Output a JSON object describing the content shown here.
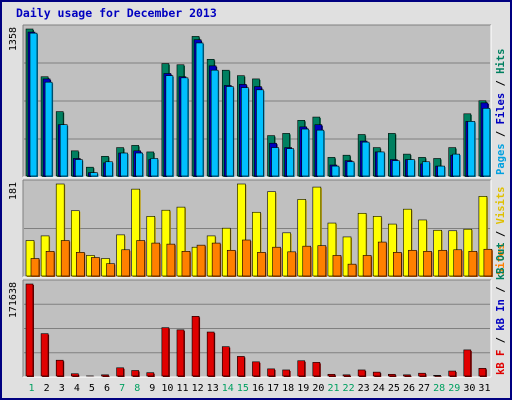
{
  "title": "Daily usage for December 2013",
  "legends": {
    "top": [
      {
        "text": "Pages",
        "color": "#00a0e0"
      },
      {
        "text": " / ",
        "color": "#000000"
      },
      {
        "text": "Files",
        "color": "#0000c0"
      },
      {
        "text": " / ",
        "color": "#000000"
      },
      {
        "text": "Hits",
        "color": "#008060"
      }
    ],
    "middle": [
      {
        "text": "Sites",
        "color": "#ff8000"
      },
      {
        "text": " / ",
        "color": "#000000"
      },
      {
        "text": "Visits",
        "color": "#e0c000"
      }
    ],
    "bottom": [
      {
        "text": "kB F",
        "color": "#e00000"
      },
      {
        "text": " / ",
        "color": "#000000"
      },
      {
        "text": "kB In",
        "color": "#0000c0"
      },
      {
        "text": " / ",
        "color": "#000000"
      },
      {
        "text": "kB Out",
        "color": "#008060"
      }
    ]
  },
  "chart_data": [
    {
      "type": "bar",
      "panel": "hits-files-pages",
      "ylabel_max": "1358",
      "ylim": [
        0,
        1358
      ],
      "categories": [
        "1",
        "2",
        "3",
        "4",
        "5",
        "6",
        "7",
        "8",
        "9",
        "10",
        "11",
        "12",
        "13",
        "14",
        "15",
        "16",
        "17",
        "18",
        "19",
        "20",
        "21",
        "22",
        "23",
        "24",
        "25",
        "26",
        "27",
        "28",
        "29",
        "30",
        "31"
      ],
      "weekend_days": [
        "1",
        "7",
        "8",
        "14",
        "15",
        "21",
        "22",
        "28",
        "29"
      ],
      "series": [
        {
          "name": "Hits",
          "color": "#008060",
          "values": [
            1358,
            920,
            600,
            240,
            90,
            190,
            270,
            290,
            230,
            1040,
            1030,
            1290,
            1080,
            980,
            930,
            900,
            380,
            400,
            520,
            550,
            180,
            200,
            390,
            270,
            400,
            210,
            180,
            170,
            270,
            580,
            700
          ]
        },
        {
          "name": "Files",
          "color": "#0000c0",
          "values": [
            1330,
            900,
            480,
            170,
            40,
            130,
            220,
            240,
            160,
            950,
            920,
            1260,
            1020,
            840,
            850,
            830,
            310,
            270,
            460,
            480,
            110,
            150,
            330,
            230,
            160,
            160,
            120,
            100,
            200,
            510,
            680
          ]
        },
        {
          "name": "Pages",
          "color": "#00c0ff",
          "values": [
            1320,
            870,
            480,
            160,
            40,
            140,
            220,
            220,
            170,
            930,
            910,
            1230,
            980,
            830,
            820,
            800,
            270,
            260,
            440,
            430,
            100,
            140,
            320,
            230,
            150,
            160,
            140,
            100,
            210,
            510,
            630
          ]
        }
      ]
    },
    {
      "type": "bar",
      "panel": "visits-sites",
      "ylabel_max": "181",
      "ylim": [
        0,
        181
      ],
      "series": [
        {
          "name": "Visits",
          "color": "#ffff00",
          "values": [
            71,
            80,
            181,
            129,
            42,
            36,
            82,
            171,
            118,
            130,
            136,
            58,
            80,
            95,
            181,
            126,
            166,
            86,
            151,
            175,
            105,
            78,
            124,
            118,
            103,
            132,
            111,
            91,
            90,
            93,
            157
          ]
        },
        {
          "name": "Sites",
          "color": "#ff8000",
          "values": [
            36,
            50,
            71,
            48,
            38,
            26,
            53,
            71,
            66,
            64,
            50,
            62,
            66,
            52,
            72,
            48,
            58,
            49,
            60,
            61,
            42,
            25,
            42,
            68,
            48,
            52,
            50,
            52,
            53,
            50,
            54
          ]
        }
      ]
    },
    {
      "type": "bar",
      "panel": "kbytes",
      "ylabel_max": "171638",
      "ylim": [
        0,
        171638
      ],
      "series": [
        {
          "name": "kB F",
          "color": "#e00000",
          "values": [
            171638,
            80000,
            31000,
            6000,
            2000,
            4000,
            17000,
            12000,
            8000,
            91000,
            87000,
            112000,
            83000,
            56000,
            38000,
            28000,
            15000,
            13000,
            30000,
            27000,
            5000,
            4000,
            13000,
            9000,
            5000,
            4000,
            7000,
            3000,
            11000,
            50000,
            16000
          ]
        },
        {
          "name": "kB In",
          "color": "#0000c0",
          "values": [
            0,
            0,
            0,
            0,
            0,
            0,
            0,
            0,
            0,
            0,
            0,
            0,
            0,
            0,
            0,
            0,
            0,
            0,
            0,
            0,
            0,
            0,
            0,
            0,
            0,
            0,
            0,
            0,
            0,
            0,
            0
          ]
        },
        {
          "name": "kB Out",
          "color": "#008060",
          "values": [
            0,
            0,
            0,
            0,
            0,
            0,
            0,
            0,
            0,
            0,
            0,
            0,
            0,
            0,
            0,
            0,
            0,
            0,
            0,
            0,
            0,
            0,
            0,
            0,
            0,
            0,
            0,
            0,
            0,
            0,
            0
          ]
        }
      ]
    }
  ]
}
